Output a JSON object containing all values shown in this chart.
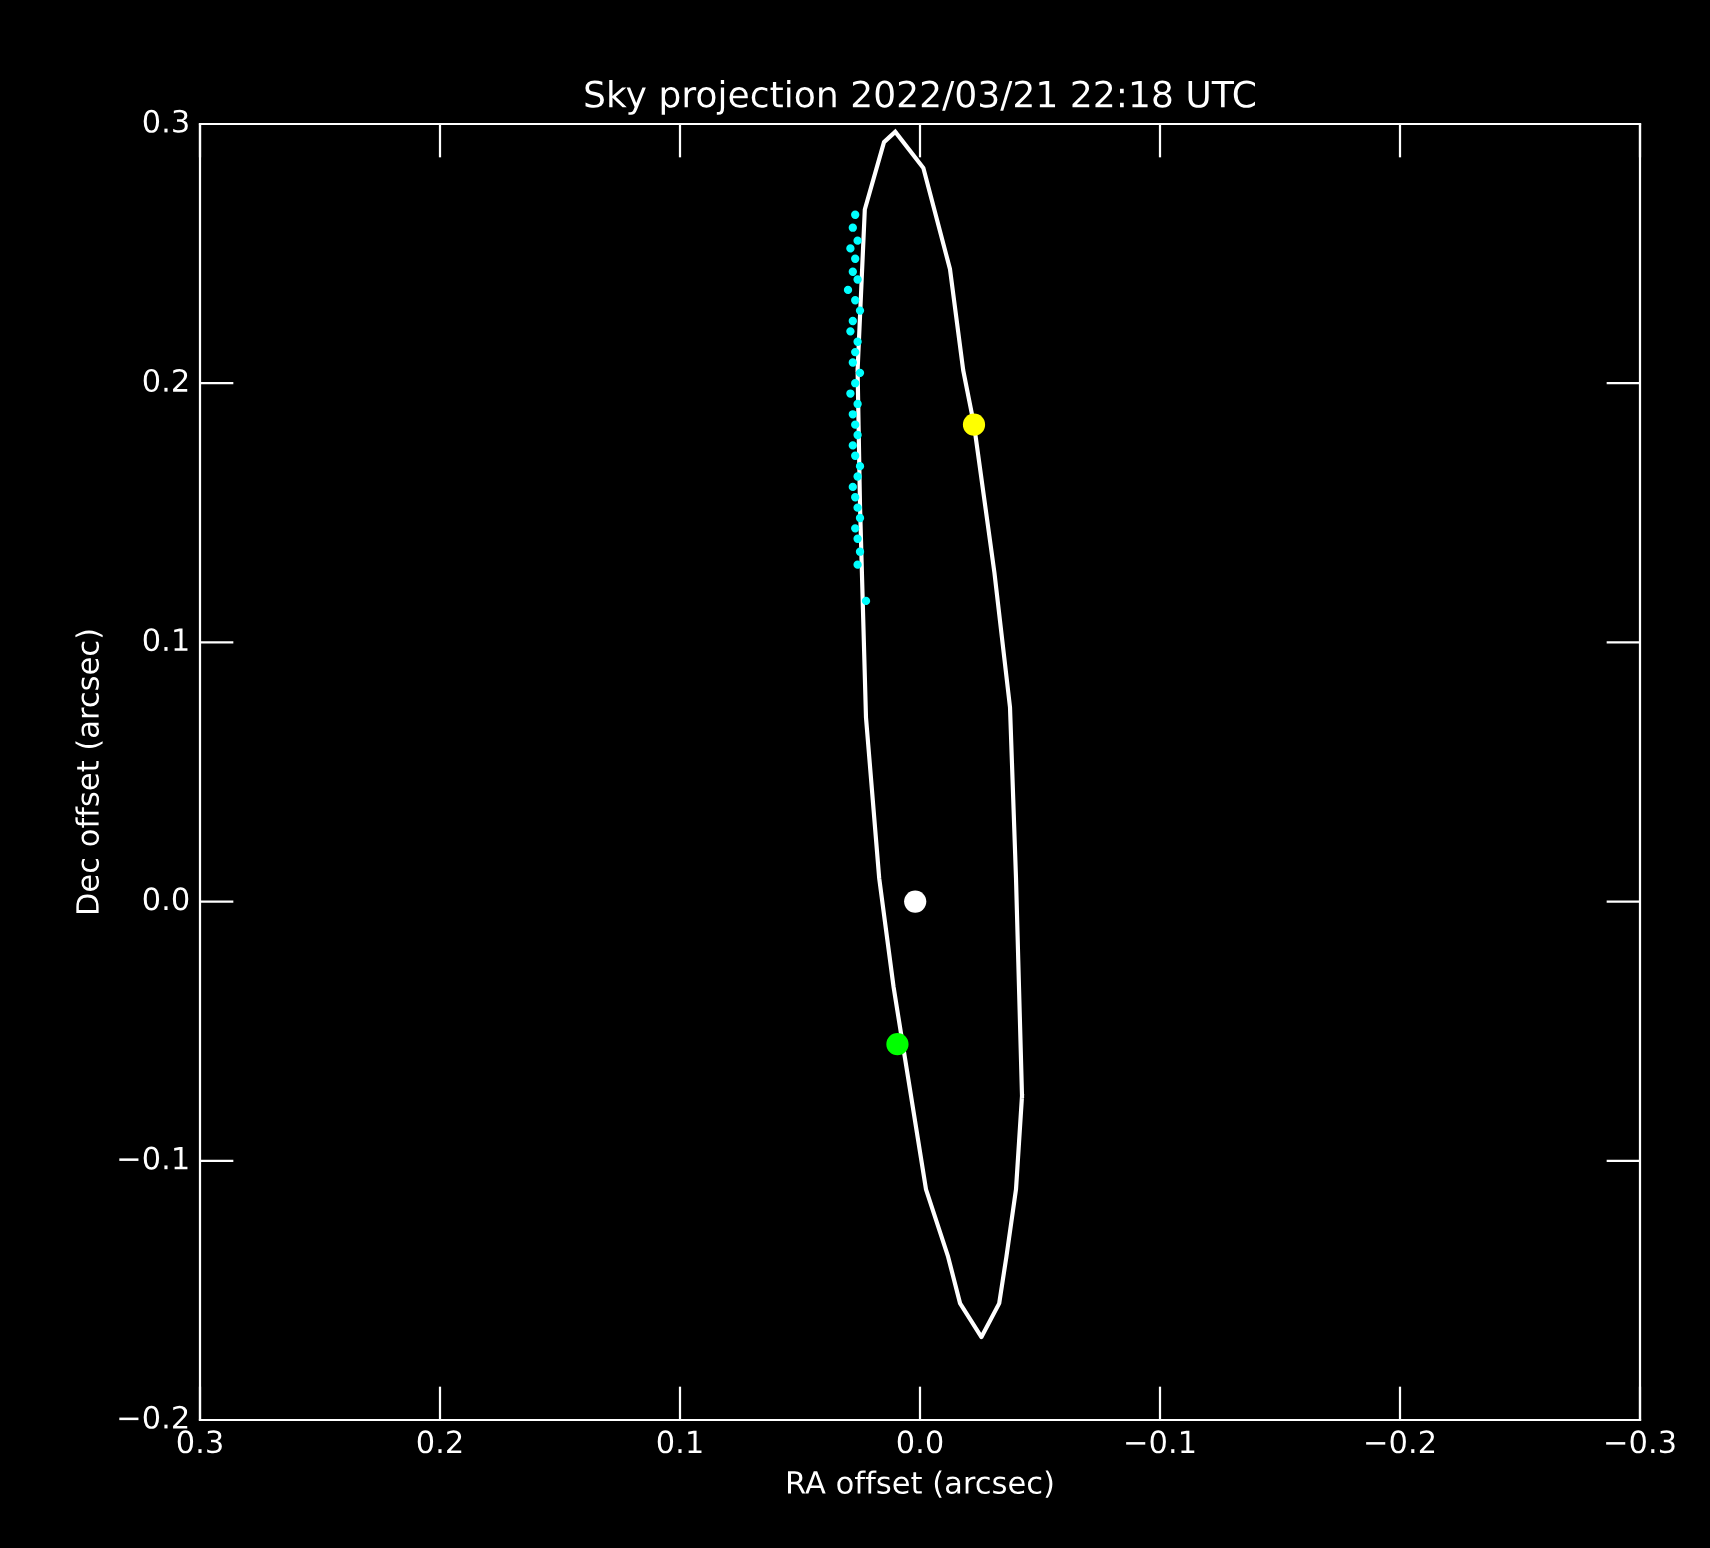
{
  "chart_data": {
    "type": "scatter",
    "title": "Sky projection 2022/03/21 22:18 UTC",
    "xlabel": "RA offset (arcsec)",
    "ylabel": "Dec offset (arcsec)",
    "xlim": [
      0.3,
      -0.3
    ],
    "ylim": [
      -0.2,
      0.3
    ],
    "xticks": [
      {
        "value": 0.3,
        "label": "0.3"
      },
      {
        "value": 0.2,
        "label": "0.2"
      },
      {
        "value": 0.1,
        "label": "0.1"
      },
      {
        "value": 0.0,
        "label": "0.0"
      },
      {
        "value": -0.1,
        "label": "−0.1"
      },
      {
        "value": -0.2,
        "label": "−0.2"
      },
      {
        "value": -0.3,
        "label": "−0.3"
      }
    ],
    "yticks": [
      {
        "value": -0.2,
        "label": "−0.2"
      },
      {
        "value": -0.1,
        "label": "−0.1"
      },
      {
        "value": 0.0,
        "label": "0.0"
      },
      {
        "value": 0.1,
        "label": "0.1"
      },
      {
        "value": 0.2,
        "label": "0.2"
      },
      {
        "value": 0.3,
        "label": "0.3"
      }
    ],
    "grid": false,
    "legend": false,
    "series": [
      {
        "type": "line",
        "marker": "none",
        "color": "#ffffff",
        "x": [
          0.0103,
          -0.0014,
          -0.0125,
          -0.018,
          -0.0225,
          -0.031,
          -0.0375,
          -0.04,
          -0.0425,
          null,
          0.026,
          0.025,
          0.0225,
          0.017,
          0.011,
          -0.0025,
          -0.0117,
          -0.0167,
          -0.0256,
          -0.033,
          -0.036,
          -0.04,
          -0.0425,
          null,
          0.026,
          0.023,
          0.015,
          0.0103
        ],
        "values": [
          0.297,
          0.283,
          0.244,
          0.205,
          0.184,
          0.127,
          0.075,
          0.009,
          -0.075,
          null,
          0.205,
          0.153,
          0.071,
          0.009,
          -0.033,
          -0.111,
          -0.137,
          -0.155,
          -0.168,
          -0.155,
          -0.137,
          -0.111,
          -0.075,
          null,
          0.205,
          0.267,
          0.293,
          0.297
        ]
      },
      {
        "marker": "circle",
        "color": "#00ffff",
        "x": [
          0.027,
          0.028,
          0.026,
          0.029,
          0.027,
          0.028,
          0.026,
          0.03,
          0.027,
          0.025,
          0.028,
          0.029,
          0.026,
          0.027,
          0.028,
          0.025,
          0.027,
          0.029,
          0.026,
          0.028,
          0.027,
          0.026,
          0.028,
          0.027,
          0.025,
          0.026,
          0.028,
          0.027,
          0.026,
          0.025,
          0.027,
          0.026,
          0.025,
          0.026,
          0.0225
        ],
        "values": [
          0.265,
          0.26,
          0.255,
          0.252,
          0.248,
          0.243,
          0.24,
          0.236,
          0.232,
          0.228,
          0.224,
          0.22,
          0.216,
          0.212,
          0.208,
          0.204,
          0.2,
          0.196,
          0.192,
          0.188,
          0.184,
          0.18,
          0.176,
          0.172,
          0.168,
          0.164,
          0.16,
          0.156,
          0.152,
          0.148,
          0.144,
          0.14,
          0.135,
          0.13,
          0.116
        ]
      },
      {
        "marker": "circle",
        "color": "#ffff00",
        "x": [
          -0.0225
        ],
        "values": [
          0.184
        ]
      },
      {
        "marker": "circle",
        "color": "#00ff00",
        "x": [
          0.0094
        ],
        "values": [
          -0.055
        ]
      },
      {
        "marker": "circle",
        "color": "#ffffff",
        "x": [
          0.002
        ],
        "values": [
          0.0
        ]
      }
    ]
  }
}
